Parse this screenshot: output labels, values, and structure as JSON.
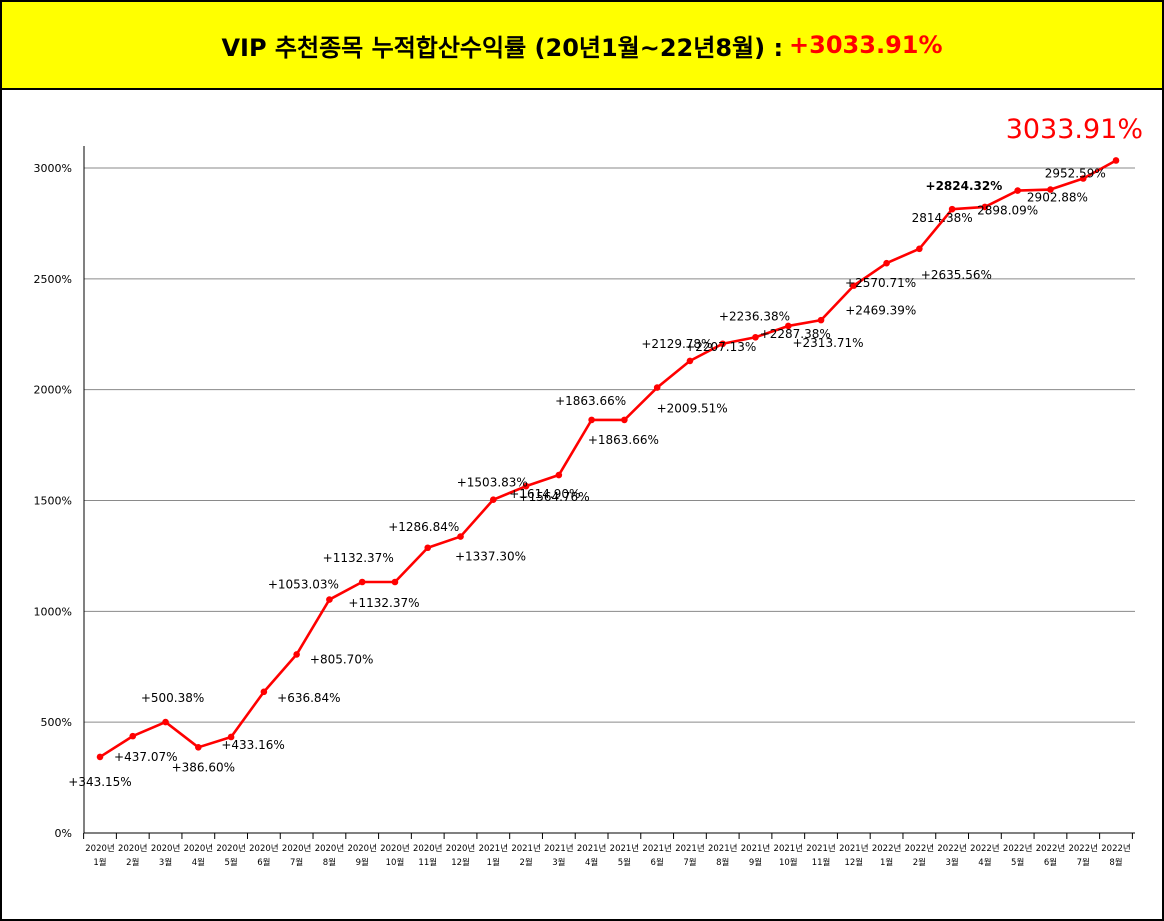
{
  "header": {
    "title": "VIP 추천종목 누적합산수익률 (20년1월~22년8월) :",
    "highlight": "+3033.91%"
  },
  "colors": {
    "line": "#ff0000",
    "header_bg": "#ffff00",
    "grid": "#8a8a8a"
  },
  "chart_data": {
    "type": "line",
    "big_label": "3033.91%",
    "y_ticks": [
      "0%",
      "500%",
      "1000%",
      "1500%",
      "2000%",
      "2500%",
      "3000%"
    ],
    "ylim": [
      0,
      3000
    ],
    "grid": true,
    "categories": [
      [
        "2020년",
        "1월"
      ],
      [
        "2020년",
        "2월"
      ],
      [
        "2020년",
        "3월"
      ],
      [
        "2020년",
        "4월"
      ],
      [
        "2020년",
        "5월"
      ],
      [
        "2020년",
        "6월"
      ],
      [
        "2020년",
        "7월"
      ],
      [
        "2020년",
        "8월"
      ],
      [
        "2020년",
        "9월"
      ],
      [
        "2020년",
        "10월"
      ],
      [
        "2020년",
        "11월"
      ],
      [
        "2020년",
        "12월"
      ],
      [
        "2021년",
        "1월"
      ],
      [
        "2021년",
        "2월"
      ],
      [
        "2021년",
        "3월"
      ],
      [
        "2021년",
        "4월"
      ],
      [
        "2021년",
        "5월"
      ],
      [
        "2021년",
        "6월"
      ],
      [
        "2021년",
        "7월"
      ],
      [
        "2021년",
        "8월"
      ],
      [
        "2021년",
        "9월"
      ],
      [
        "2021년",
        "10월"
      ],
      [
        "2021년",
        "11월"
      ],
      [
        "2021년",
        "12월"
      ],
      [
        "2022년",
        "1월"
      ],
      [
        "2022년",
        "2월"
      ],
      [
        "2022년",
        "3월"
      ],
      [
        "2022년",
        "4월"
      ],
      [
        "2022년",
        "5월"
      ],
      [
        "2022년",
        "6월"
      ],
      [
        "2022년",
        "7월"
      ],
      [
        "2022년",
        "8월"
      ]
    ],
    "values": [
      343.15,
      437.07,
      500.38,
      386.6,
      433.16,
      636.84,
      805.7,
      1053.03,
      1132.37,
      1132.37,
      1286.84,
      1337.3,
      1503.83,
      1564.76,
      1614.9,
      1863.66,
      1863.66,
      2009.51,
      2129.78,
      2207.13,
      2236.38,
      2287.38,
      2313.71,
      2469.39,
      2570.71,
      2635.56,
      2814.38,
      2824.32,
      2898.09,
      2902.88,
      2952.59,
      3033.91
    ],
    "labels": [
      "+343.15%",
      "+437.07%",
      "+500.38%",
      "+386.60%",
      "+433.16%",
      "+636.84%",
      "+805.70%",
      "+1053.03%",
      "+1132.37%",
      "+1132.37%",
      "+1286.84%",
      "+1337.30%",
      "+1503.83%",
      "+1564.76%",
      "+1614.90%",
      "+1863.66%",
      "+1863.66%",
      "+2009.51%",
      "+2129.78%",
      "+2207.13%",
      "+2236.38%",
      "+2287.38%",
      "+2313.71%",
      "+2469.39%",
      "+2570.71%",
      "+2635.56%",
      "2814.38%",
      "+2824.32%",
      "2898.09%",
      "2902.88%",
      "2952.59%",
      ""
    ],
    "label_bold": [
      27
    ]
  }
}
